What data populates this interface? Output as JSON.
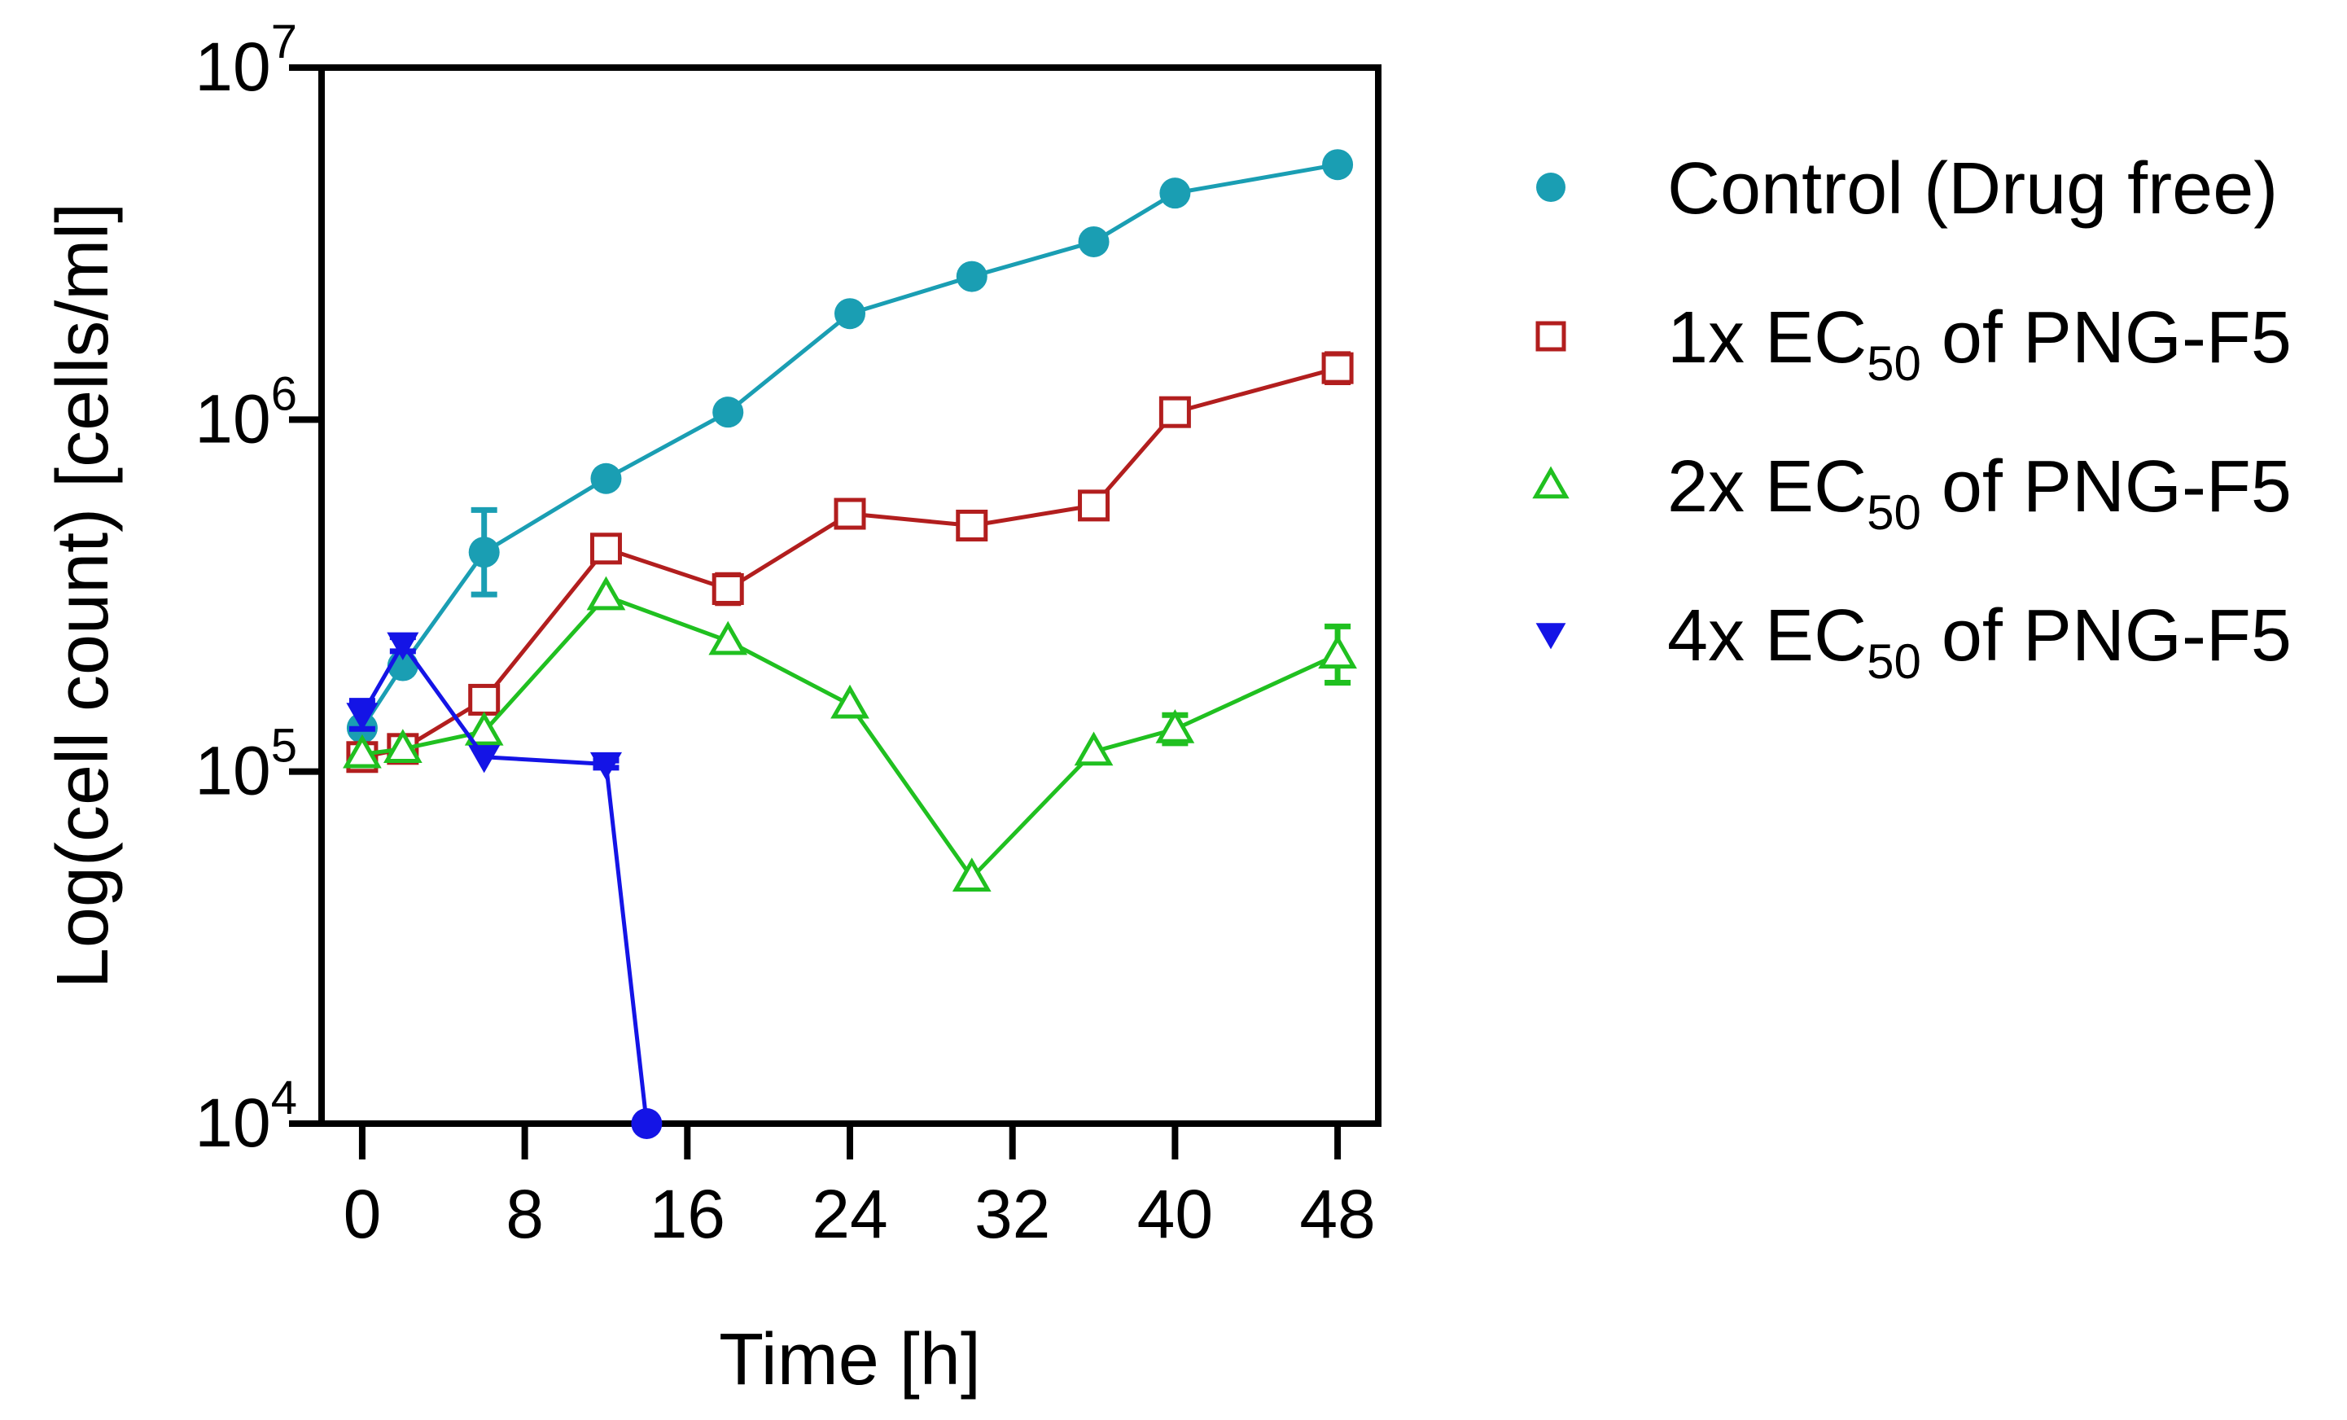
{
  "chart_data": {
    "type": "line",
    "title": "",
    "xlabel": "Time [h]",
    "ylabel": "Log(cell count) [cells/ml]",
    "xlim": [
      -2,
      50
    ],
    "ylim": [
      10000,
      10000000
    ],
    "yscale": "log",
    "x_ticks": [
      0,
      8,
      16,
      24,
      32,
      40,
      48
    ],
    "x_tick_labels": [
      "0",
      "8",
      "16",
      "24",
      "32",
      "40",
      "48"
    ],
    "y_ticks": [
      {
        "value": 10000,
        "base": "10",
        "exp": "4"
      },
      {
        "value": 100000,
        "base": "10",
        "exp": "5"
      },
      {
        "value": 1000000,
        "base": "10",
        "exp": "6"
      },
      {
        "value": 10000000,
        "base": "10",
        "exp": "7"
      }
    ],
    "grid": false,
    "legend_position": "right",
    "series": [
      {
        "name": "Control (Drug free)",
        "legend": {
          "pre": "Control (Drug free)",
          "sub": "",
          "post": ""
        },
        "color": "#1a9eb3",
        "marker": "circle-filled",
        "x": [
          0,
          2,
          6,
          12,
          18,
          24,
          30,
          36,
          40,
          48
        ],
        "y": [
          133000,
          200000,
          420000,
          680000,
          1050000,
          2000000,
          2550000,
          3200000,
          4400000,
          5300000
        ],
        "err": [
          0,
          0,
          0.12,
          0,
          0,
          0,
          0,
          0,
          0,
          0
        ]
      },
      {
        "name": "1x EC50 of PNG-F5",
        "legend": {
          "pre": "1x EC",
          "sub": "50",
          "post": " of PNG-F5"
        },
        "color": "#b21e1e",
        "marker": "square-open",
        "x": [
          0,
          2,
          6,
          12,
          18,
          24,
          30,
          36,
          40,
          48
        ],
        "y": [
          110000,
          116000,
          160000,
          430000,
          330000,
          540000,
          500000,
          570000,
          1050000,
          1400000
        ],
        "err": [
          0,
          0.03,
          0,
          0,
          0.04,
          0,
          0,
          0,
          0,
          0.04
        ]
      },
      {
        "name": "2x EC50 of PNG-F5",
        "legend": {
          "pre": "2x EC",
          "sub": "50",
          "post": " of PNG-F5"
        },
        "color": "#20c020",
        "marker": "triangle-open",
        "x": [
          0,
          2,
          6,
          12,
          18,
          24,
          30,
          36,
          40,
          48
        ],
        "y": [
          112000,
          116000,
          130000,
          315000,
          235000,
          155000,
          50000,
          114000,
          132000,
          215000
        ],
        "err": [
          0,
          0,
          0,
          0,
          0,
          0,
          0,
          0,
          0.04,
          0.08
        ]
      },
      {
        "name": "4x EC50 of PNG-F5",
        "legend": {
          "pre": "4x EC",
          "sub": "50",
          "post": " of PNG-F5"
        },
        "color": "#1414e6",
        "marker": "triangle-down-filled",
        "x": [
          0,
          2,
          6,
          12,
          14
        ],
        "y": [
          145000,
          230000,
          110000,
          105000,
          10000
        ],
        "err": [
          0.04,
          0.02,
          0,
          0.01,
          0
        ]
      }
    ]
  }
}
